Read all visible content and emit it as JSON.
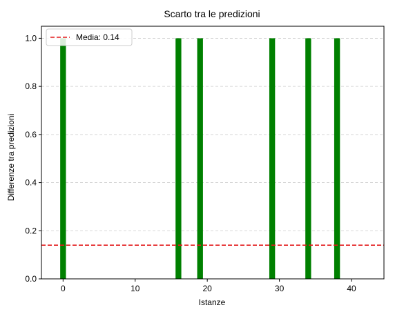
{
  "chart_data": {
    "type": "bar",
    "title": "Scarto tra le predizioni",
    "xlabel": "Istanze",
    "ylabel": "Differenze tra predizioni",
    "x": [
      0,
      16,
      19,
      29,
      34,
      38
    ],
    "values": [
      1.0,
      1.0,
      1.0,
      1.0,
      1.0,
      1.0
    ],
    "xlim": [
      -3,
      44.5
    ],
    "ylim": [
      0,
      1.05
    ],
    "xticks": [
      0,
      10,
      20,
      30,
      40
    ],
    "yticks": [
      0.0,
      0.2,
      0.4,
      0.6,
      0.8,
      1.0
    ],
    "xtick_labels": [
      "0",
      "10",
      "20",
      "30",
      "40"
    ],
    "ytick_labels": [
      "0.0",
      "0.2",
      "0.4",
      "0.6",
      "0.8",
      "1.0"
    ],
    "grid": "y",
    "bar_color": "#008000",
    "mean_line": {
      "value": 0.14,
      "label": "Media: 0.14",
      "color": "#e31a1c",
      "style": "dashed"
    },
    "legend_position": "top-left"
  }
}
